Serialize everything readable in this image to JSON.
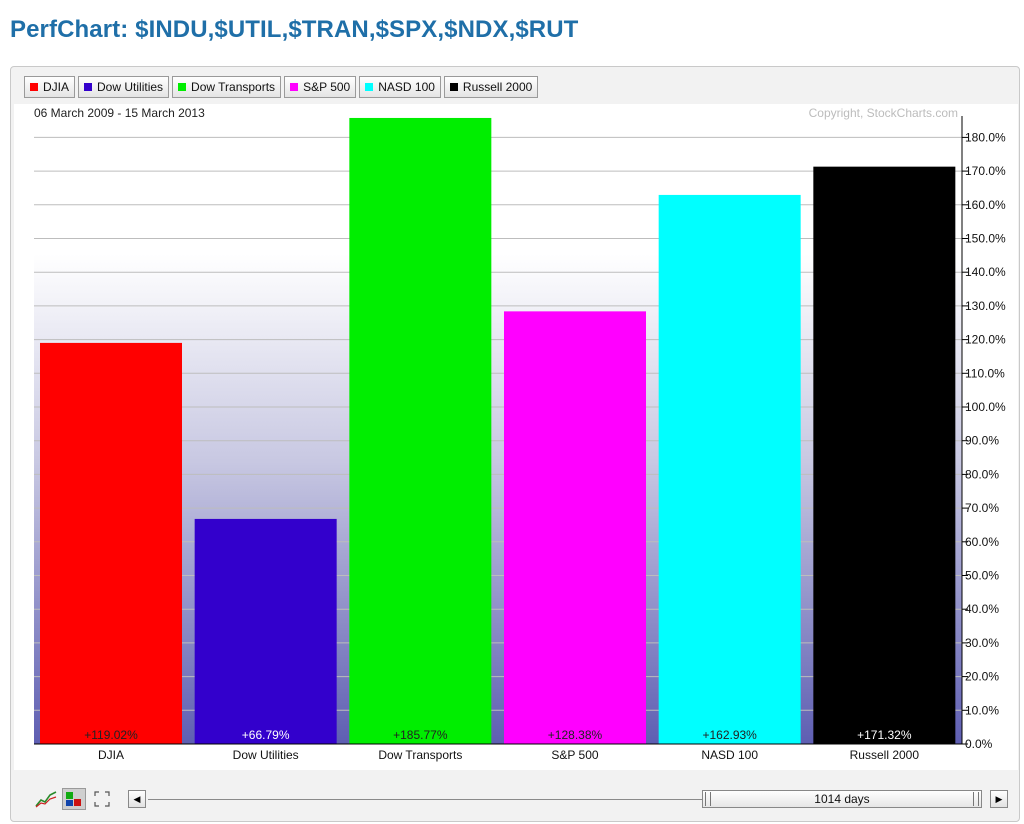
{
  "title": "PerfChart: $INDU,$UTIL,$TRAN,$SPX,$NDX,$RUT",
  "legend": [
    {
      "name": "DJIA",
      "color": "#ff0000"
    },
    {
      "name": "Dow Utilities",
      "color": "#3300cc"
    },
    {
      "name": "Dow Transports",
      "color": "#00ee00"
    },
    {
      "name": "S&P 500",
      "color": "#ff00ff"
    },
    {
      "name": "NASD 100",
      "color": "#00ffff"
    },
    {
      "name": "Russell 2000",
      "color": "#000000"
    }
  ],
  "date_range": "06 March 2009 - 15 March 2013",
  "copyright": "Copyright, StockCharts.com",
  "chart_data": {
    "type": "bar",
    "categories": [
      "DJIA",
      "Dow Utilities",
      "Dow Transports",
      "S&P 500",
      "NASD 100",
      "Russell 2000"
    ],
    "values": [
      119.02,
      66.79,
      185.77,
      128.38,
      162.93,
      171.32
    ],
    "value_labels": [
      "+119.02%",
      "+66.79%",
      "+185.77%",
      "+128.38%",
      "+162.93%",
      "+171.32%"
    ],
    "colors": [
      "#ff0000",
      "#3300cc",
      "#00ee00",
      "#ff00ff",
      "#00ffff",
      "#000000"
    ],
    "label_colors": [
      "#222222",
      "#ffffff",
      "#222222",
      "#222222",
      "#222222",
      "#ffffff"
    ],
    "ylim": [
      0,
      180
    ],
    "yticks": [
      0,
      10,
      20,
      30,
      40,
      50,
      60,
      70,
      80,
      90,
      100,
      110,
      120,
      130,
      140,
      150,
      160,
      170,
      180
    ],
    "ytick_labels": [
      "0.0%",
      "10.0%",
      "20.0%",
      "30.0%",
      "40.0%",
      "50.0%",
      "60.0%",
      "70.0%",
      "80.0%",
      "90.0%",
      "100.0%",
      "110.0%",
      "120.0%",
      "130.0%",
      "140.0%",
      "150.0%",
      "160.0%",
      "170.0%",
      "180.0%"
    ],
    "grid": true,
    "y_axis_position": "right"
  },
  "controls": {
    "period": "1014 days",
    "scroll_left": "◀",
    "scroll_right": "▶"
  }
}
